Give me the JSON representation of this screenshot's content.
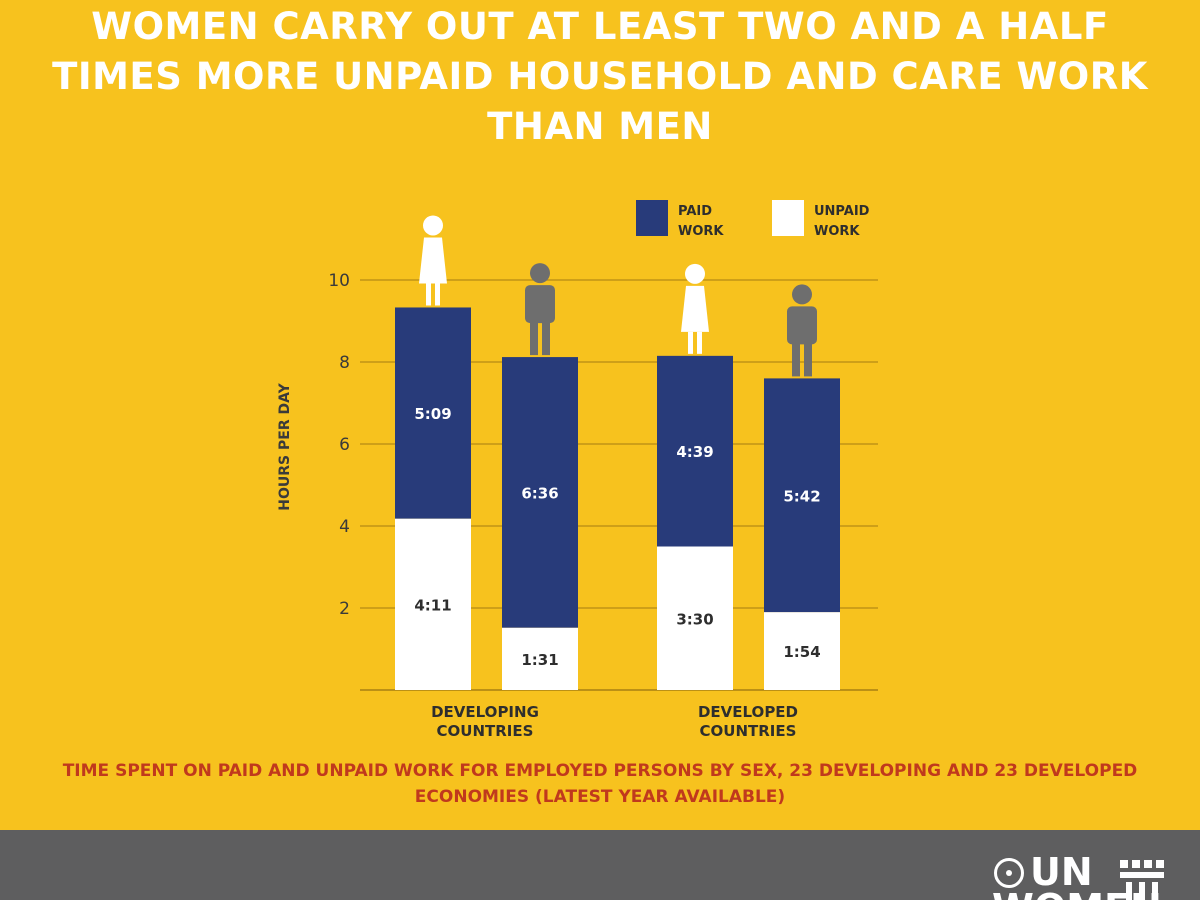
{
  "header": {
    "title": "WOMEN CARRY OUT AT LEAST TWO AND A HALF TIMES MORE UNPAID HOUSEHOLD AND CARE WORK THAN MEN"
  },
  "colors": {
    "background": "#F7C21E",
    "paid": "#283B7A",
    "unpaid": "#FFFFFF",
    "icon_woman": "#FFFFFF",
    "icon_man": "#6E6E6E",
    "caption": "#C0391D",
    "footer": "#5E5E5F"
  },
  "chart_data": {
    "type": "bar",
    "stacked": true,
    "title": "",
    "xlabel": "",
    "ylabel": "HOURS PER DAY",
    "ylim": [
      0,
      10
    ],
    "yticks": [
      2,
      4,
      6,
      8,
      10
    ],
    "grid": true,
    "legend_position": "top-right",
    "groups": [
      {
        "label": "DEVELOPING COUNTRIES",
        "bars": [
          {
            "sex": "woman",
            "unpaid": 4.18,
            "paid": 5.15,
            "unpaid_label": "4:11",
            "paid_label": "5:09"
          },
          {
            "sex": "man",
            "unpaid": 1.52,
            "paid": 6.6,
            "unpaid_label": "1:31",
            "paid_label": "6:36"
          }
        ]
      },
      {
        "label": "DEVELOPED COUNTRIES",
        "bars": [
          {
            "sex": "woman",
            "unpaid": 3.5,
            "paid": 4.65,
            "unpaid_label": "3:30",
            "paid_label": "4:39"
          },
          {
            "sex": "man",
            "unpaid": 1.9,
            "paid": 5.7,
            "unpaid_label": "1:54",
            "paid_label": "5:42"
          }
        ]
      }
    ],
    "series": [
      {
        "name": "PAID WORK",
        "key": "paid",
        "color": "#283B7A"
      },
      {
        "name": "UNPAID WORK",
        "key": "unpaid",
        "color": "#FFFFFF"
      }
    ]
  },
  "caption": "TIME SPENT ON PAID AND UNPAID WORK FOR EMPLOYED PERSONS BY SEX, 23 DEVELOPING AND 23 DEVELOPED ECONOMIES (LATEST YEAR AVAILABLE)",
  "footer": {
    "logo_line1": "UN",
    "logo_line2": "WOMEN"
  }
}
